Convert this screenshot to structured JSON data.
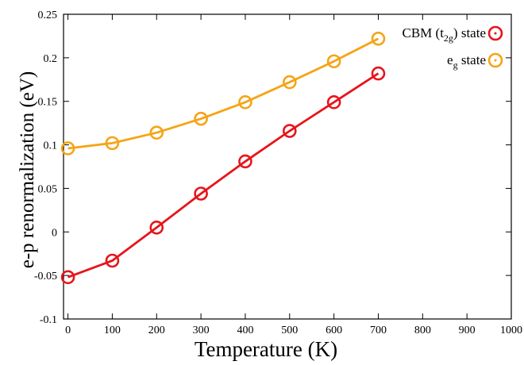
{
  "chart_data": {
    "type": "line",
    "xlabel": "Temperature (K)",
    "ylabel": "e-p renormalization (eV)",
    "xlim": [
      -10,
      1000
    ],
    "ylim": [
      -0.1,
      0.25
    ],
    "x_ticks": [
      0,
      100,
      200,
      300,
      400,
      500,
      600,
      700,
      800,
      900,
      1000
    ],
    "y_ticks": [
      -0.1,
      -0.05,
      0,
      0.05,
      0.1,
      0.15,
      0.2,
      0.25
    ],
    "x_tick_labels": [
      "0",
      "100",
      "200",
      "300",
      "400",
      "500",
      "600",
      "700",
      "800",
      "900",
      "1000"
    ],
    "y_tick_labels": [
      "-0.1",
      "-0.05",
      "0",
      "0.05",
      "0.1",
      "0.15",
      "0.2",
      "0.25"
    ],
    "grid": false,
    "legend_position": "top-right",
    "x": [
      0,
      100,
      200,
      300,
      400,
      500,
      600,
      700
    ],
    "series": [
      {
        "name": "CBM (t2g) state",
        "name_parts": {
          "pre": "CBM (t",
          "sub": "2g",
          "post": ") state"
        },
        "color": "#e8141b",
        "marker": "open-circle",
        "values": [
          -0.052,
          -0.033,
          0.005,
          0.044,
          0.081,
          0.116,
          0.149,
          0.182
        ]
      },
      {
        "name": "eg state",
        "name_parts": {
          "pre": "e",
          "sub": "g",
          "post": " state"
        },
        "color": "#f5a416",
        "marker": "open-circle",
        "values": [
          0.096,
          0.102,
          0.114,
          0.13,
          0.149,
          0.172,
          0.196,
          0.222
        ]
      }
    ]
  }
}
